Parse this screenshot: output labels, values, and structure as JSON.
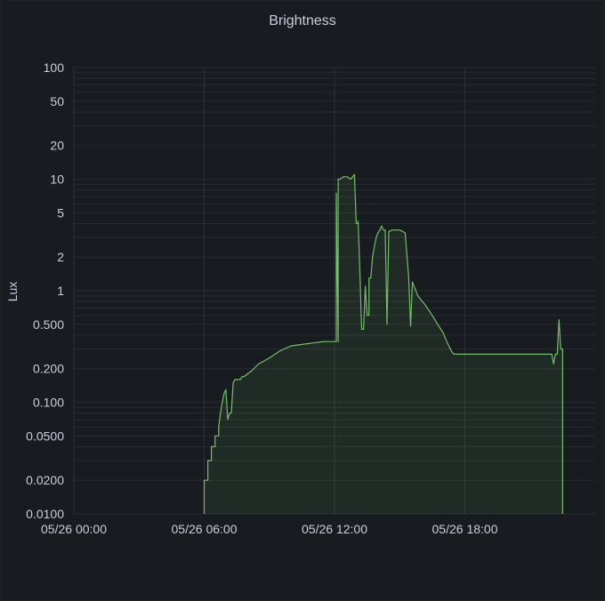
{
  "panel": {
    "title": "Brightness"
  },
  "colors": {
    "background": "#181b1f",
    "grid": "#2c2f35",
    "text": "#ccccdc",
    "series": "#73bf69"
  },
  "chart_data": {
    "type": "area",
    "title": "Brightness",
    "xlabel": "",
    "ylabel": "Lux",
    "y_scale": "log",
    "ylim": [
      0.01,
      100
    ],
    "y_ticks": [
      {
        "v": 100,
        "label": "100"
      },
      {
        "v": 50,
        "label": "50"
      },
      {
        "v": 20,
        "label": "20"
      },
      {
        "v": 10,
        "label": "10"
      },
      {
        "v": 5,
        "label": "5"
      },
      {
        "v": 2,
        "label": "2"
      },
      {
        "v": 1,
        "label": "1"
      },
      {
        "v": 0.5,
        "label": "0.500"
      },
      {
        "v": 0.2,
        "label": "0.200"
      },
      {
        "v": 0.1,
        "label": "0.100"
      },
      {
        "v": 0.05,
        "label": "0.0500"
      },
      {
        "v": 0.02,
        "label": "0.0200"
      },
      {
        "v": 0.01,
        "label": "0.0100"
      }
    ],
    "xlim": [
      "05/26 00:00",
      "05/26 24:00"
    ],
    "x_ticks": [
      {
        "t": "05/26 00:00",
        "label": "05/26 00:00"
      },
      {
        "t": "05/26 06:00",
        "label": "05/26 06:00"
      },
      {
        "t": "05/26 12:00",
        "label": "05/26 12:00"
      },
      {
        "t": "05/26 18:00",
        "label": "05/26 18:00"
      }
    ],
    "grid": true,
    "legend": "none",
    "series": [
      {
        "x": [
          "05/26 06:00",
          "05/26 06:00",
          "05/26 06:10",
          "05/26 06:10",
          "05/26 06:20",
          "05/26 06:20",
          "05/26 06:30",
          "05/26 06:30",
          "05/26 06:40",
          "05/26 06:40",
          "05/26 06:45",
          "05/26 06:50",
          "05/26 06:55",
          "05/26 07:00",
          "05/26 07:05",
          "05/26 07:10",
          "05/26 07:15",
          "05/26 07:20",
          "05/26 07:25",
          "05/26 07:30",
          "05/26 07:35",
          "05/26 07:40",
          "05/26 07:45",
          "05/26 07:50",
          "05/26 08:00",
          "05/26 08:10",
          "05/26 08:30",
          "05/26 09:00",
          "05/26 09:30",
          "05/26 10:00",
          "05/26 10:30",
          "05/26 11:00",
          "05/26 11:30",
          "05/26 11:45",
          "05/26 11:55",
          "05/26 12:00",
          "05/26 12:05",
          "05/26 12:05",
          "05/26 12:10",
          "05/26 12:10",
          "05/26 12:15",
          "05/26 12:25",
          "05/26 12:35",
          "05/26 12:45",
          "05/26 12:55",
          "05/26 13:00",
          "05/26 13:05",
          "05/26 13:05",
          "05/26 13:10",
          "05/26 13:15",
          "05/26 13:20",
          "05/26 13:25",
          "05/26 13:30",
          "05/26 13:35",
          "05/26 13:35",
          "05/26 13:40",
          "05/26 13:45",
          "05/26 13:50",
          "05/26 13:55",
          "05/26 14:00",
          "05/26 14:05",
          "05/26 14:10",
          "05/26 14:15",
          "05/26 14:20",
          "05/26 14:25",
          "05/26 14:30",
          "05/26 14:40",
          "05/26 15:00",
          "05/26 15:15",
          "05/26 15:25",
          "05/26 15:30",
          "05/26 15:35",
          "05/26 15:50",
          "05/26 16:10",
          "05/26 16:30",
          "05/26 16:45",
          "05/26 17:00",
          "05/26 17:10",
          "05/26 17:20",
          "05/26 17:25",
          "05/26 17:30",
          "05/26 17:35",
          "05/26 17:40",
          "05/26 17:45",
          "05/26 17:50",
          "05/26 18:00",
          "05/26 18:30",
          "05/26 19:00",
          "05/26 19:30",
          "05/26 20:00",
          "05/26 20:30",
          "05/26 21:00",
          "05/26 21:30",
          "05/26 22:00",
          "05/26 22:05",
          "05/26 22:10",
          "05/26 22:15",
          "05/26 22:20",
          "05/26 22:25",
          "05/26 22:30",
          "05/26 22:30"
        ],
        "values": [
          0.01,
          0.02,
          0.02,
          0.03,
          0.03,
          0.04,
          0.04,
          0.05,
          0.05,
          0.06,
          0.08,
          0.1,
          0.12,
          0.13,
          0.07,
          0.08,
          0.08,
          0.15,
          0.16,
          0.16,
          0.16,
          0.16,
          0.17,
          0.17,
          0.18,
          0.19,
          0.22,
          0.25,
          0.29,
          0.32,
          0.33,
          0.34,
          0.35,
          0.35,
          0.35,
          0.35,
          0.35,
          7.5,
          0.35,
          10,
          10,
          10.5,
          10.5,
          10,
          11,
          4,
          4,
          4.2,
          1.5,
          0.45,
          0.45,
          1.1,
          0.6,
          0.6,
          1.3,
          1.3,
          2,
          2.5,
          3,
          3.3,
          3.5,
          3.8,
          3.5,
          3.5,
          0.5,
          3.4,
          3.5,
          3.5,
          3.3,
          1.3,
          0.48,
          1.2,
          0.9,
          0.75,
          0.6,
          0.5,
          0.42,
          0.35,
          0.3,
          0.28,
          0.27,
          0.27,
          0.27,
          0.27,
          0.27,
          0.27,
          0.27,
          0.27,
          0.27,
          0.27,
          0.27,
          0.27,
          0.27,
          0.27,
          0.22,
          0.27,
          0.27,
          0.55,
          0.3,
          0.3,
          0.01
        ]
      }
    ]
  }
}
